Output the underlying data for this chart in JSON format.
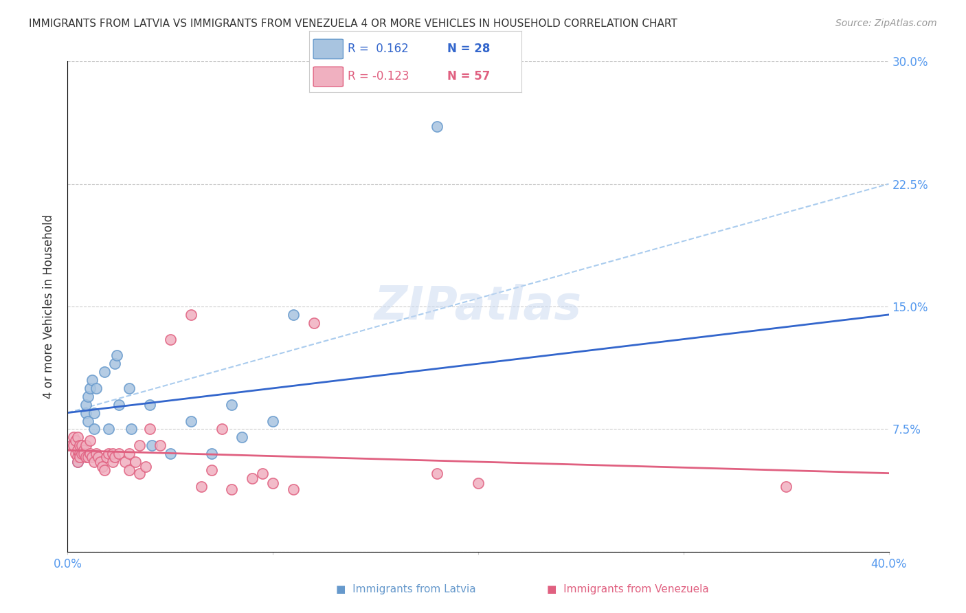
{
  "title": "IMMIGRANTS FROM LATVIA VS IMMIGRANTS FROM VENEZUELA 4 OR MORE VEHICLES IN HOUSEHOLD CORRELATION CHART",
  "source": "Source: ZipAtlas.com",
  "xlabel_bottom": "",
  "ylabel": "4 or more Vehicles in Household",
  "x_min": 0.0,
  "x_max": 0.4,
  "y_min": 0.0,
  "y_max": 0.3,
  "x_ticks": [
    0.0,
    0.1,
    0.2,
    0.3,
    0.4
  ],
  "x_tick_labels": [
    "0.0%",
    "",
    "",
    "",
    "40.0%"
  ],
  "y_ticks": [
    0.0,
    0.075,
    0.15,
    0.225,
    0.3
  ],
  "y_tick_labels": [
    "",
    "7.5%",
    "15.0%",
    "22.5%",
    "30.0%"
  ],
  "legend_r1": "R =  0.162   N = 28",
  "legend_r2": "R = -0.123   N = 57",
  "latvia_color": "#a8c4e0",
  "latvia_edge_color": "#6699cc",
  "venezuela_color": "#f0b0c0",
  "venezuela_edge_color": "#e06080",
  "latvia_line_color": "#3366cc",
  "venezuela_line_color": "#e06080",
  "trendline_dashed_color": "#aaccee",
  "watermark": "ZIPatlas",
  "latvia_scatter_x": [
    0.005,
    0.008,
    0.009,
    0.009,
    0.01,
    0.01,
    0.011,
    0.012,
    0.013,
    0.013,
    0.014,
    0.018,
    0.02,
    0.023,
    0.024,
    0.025,
    0.03,
    0.031,
    0.04,
    0.041,
    0.05,
    0.06,
    0.07,
    0.08,
    0.085,
    0.1,
    0.11,
    0.18
  ],
  "latvia_scatter_y": [
    0.055,
    0.06,
    0.085,
    0.09,
    0.08,
    0.095,
    0.1,
    0.105,
    0.075,
    0.085,
    0.1,
    0.11,
    0.075,
    0.115,
    0.12,
    0.09,
    0.1,
    0.075,
    0.09,
    0.065,
    0.06,
    0.08,
    0.06,
    0.09,
    0.07,
    0.08,
    0.145,
    0.26
  ],
  "venezuela_scatter_x": [
    0.002,
    0.003,
    0.003,
    0.004,
    0.004,
    0.005,
    0.005,
    0.005,
    0.005,
    0.006,
    0.006,
    0.006,
    0.007,
    0.007,
    0.008,
    0.008,
    0.009,
    0.009,
    0.01,
    0.011,
    0.011,
    0.012,
    0.013,
    0.014,
    0.015,
    0.016,
    0.017,
    0.018,
    0.019,
    0.02,
    0.022,
    0.022,
    0.023,
    0.025,
    0.028,
    0.03,
    0.03,
    0.033,
    0.035,
    0.035,
    0.038,
    0.04,
    0.045,
    0.05,
    0.06,
    0.065,
    0.07,
    0.075,
    0.08,
    0.09,
    0.095,
    0.1,
    0.11,
    0.12,
    0.18,
    0.2,
    0.35
  ],
  "venezuela_scatter_y": [
    0.065,
    0.07,
    0.065,
    0.06,
    0.068,
    0.058,
    0.062,
    0.07,
    0.055,
    0.06,
    0.065,
    0.058,
    0.06,
    0.065,
    0.062,
    0.06,
    0.058,
    0.065,
    0.058,
    0.06,
    0.068,
    0.058,
    0.055,
    0.06,
    0.058,
    0.055,
    0.052,
    0.05,
    0.058,
    0.06,
    0.055,
    0.06,
    0.058,
    0.06,
    0.055,
    0.05,
    0.06,
    0.055,
    0.048,
    0.065,
    0.052,
    0.075,
    0.065,
    0.13,
    0.145,
    0.04,
    0.05,
    0.075,
    0.038,
    0.045,
    0.048,
    0.042,
    0.038,
    0.14,
    0.048,
    0.042,
    0.04
  ],
  "latvia_trend_x": [
    0.0,
    0.4
  ],
  "latvia_trend_y": [
    0.085,
    0.145
  ],
  "venezuela_trend_x": [
    0.0,
    0.4
  ],
  "venezuela_trend_y": [
    0.062,
    0.048
  ],
  "dashed_trend_x": [
    0.0,
    0.4
  ],
  "dashed_trend_y": [
    0.085,
    0.225
  ]
}
